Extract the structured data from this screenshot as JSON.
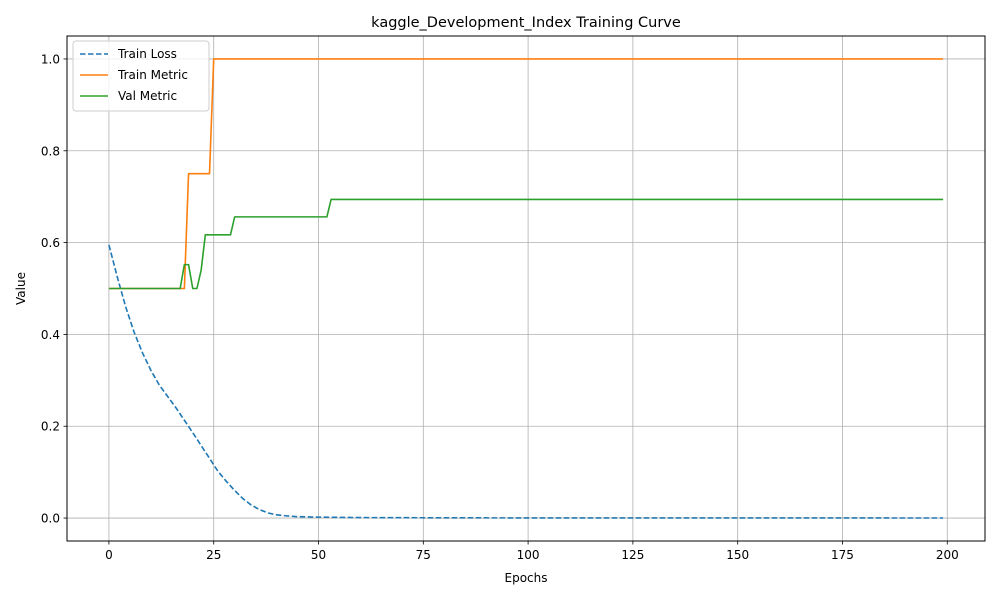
{
  "chart_data": {
    "type": "line",
    "title": "kaggle_Development_Index Training Curve",
    "xlabel": "Epochs",
    "ylabel": "Value",
    "xlim": [
      -10,
      209
    ],
    "ylim": [
      -0.05,
      1.05
    ],
    "xticks": [
      0,
      25,
      50,
      75,
      100,
      125,
      150,
      175,
      200
    ],
    "yticks": [
      0.0,
      0.2,
      0.4,
      0.6,
      0.8,
      1.0
    ],
    "xtick_labels": [
      "0",
      "25",
      "50",
      "75",
      "100",
      "125",
      "150",
      "175",
      "200"
    ],
    "ytick_labels": [
      "0.0",
      "0.2",
      "0.4",
      "0.6",
      "0.8",
      "1.0"
    ],
    "grid": true,
    "legend_position": "top-left",
    "series": [
      {
        "name": "Train Loss",
        "color": "#1f77b4",
        "dash": "dashed",
        "points": [
          [
            0,
            0.595
          ],
          [
            2,
            0.525
          ],
          [
            4,
            0.46
          ],
          [
            6,
            0.405
          ],
          [
            8,
            0.36
          ],
          [
            10,
            0.322
          ],
          [
            12,
            0.29
          ],
          [
            14,
            0.265
          ],
          [
            16,
            0.24
          ],
          [
            18,
            0.213
          ],
          [
            20,
            0.186
          ],
          [
            22,
            0.158
          ],
          [
            24,
            0.13
          ],
          [
            26,
            0.102
          ],
          [
            28,
            0.08
          ],
          [
            30,
            0.06
          ],
          [
            32,
            0.042
          ],
          [
            34,
            0.028
          ],
          [
            36,
            0.018
          ],
          [
            38,
            0.011
          ],
          [
            40,
            0.007
          ],
          [
            42,
            0.005
          ],
          [
            45,
            0.003
          ],
          [
            50,
            0.002
          ],
          [
            60,
            0.001
          ],
          [
            80,
            0.0005
          ],
          [
            100,
            0.0003
          ],
          [
            150,
            0.0002
          ],
          [
            199,
            0.0001
          ]
        ]
      },
      {
        "name": "Train Metric",
        "color": "#ff7f0e",
        "dash": "solid",
        "points": [
          [
            0,
            0.5
          ],
          [
            18,
            0.5
          ],
          [
            19,
            0.75
          ],
          [
            24,
            0.75
          ],
          [
            25,
            1.0
          ],
          [
            199,
            1.0
          ]
        ]
      },
      {
        "name": "Val Metric",
        "color": "#2ca02c",
        "dash": "solid",
        "points": [
          [
            0,
            0.5
          ],
          [
            17,
            0.5
          ],
          [
            18,
            0.552
          ],
          [
            19,
            0.552
          ],
          [
            20,
            0.5
          ],
          [
            21,
            0.5
          ],
          [
            22,
            0.54
          ],
          [
            23,
            0.617
          ],
          [
            29,
            0.617
          ],
          [
            30,
            0.656
          ],
          [
            52,
            0.656
          ],
          [
            53,
            0.694
          ],
          [
            199,
            0.694
          ]
        ]
      }
    ]
  }
}
